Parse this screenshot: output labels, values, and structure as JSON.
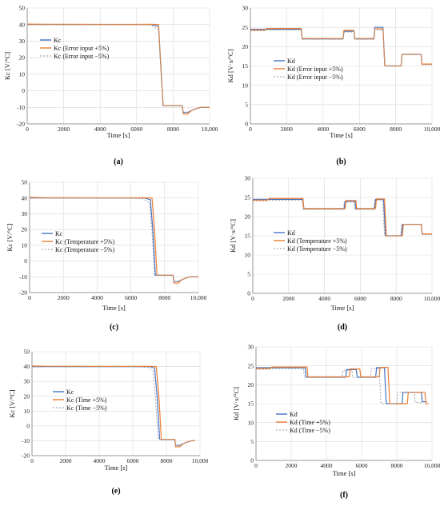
{
  "chart_data": [
    {
      "id": "a",
      "type": "line",
      "caption": "(a)",
      "xlabel": "Time [s]",
      "ylabel": "Kc [V/°C]",
      "xlim": [
        0,
        10000
      ],
      "ylim": [
        -20,
        50
      ],
      "xticks": [
        "0",
        "2000",
        "4000",
        "6000",
        "8000",
        "10,000"
      ],
      "xtick_values": [
        0,
        2000,
        4000,
        6000,
        8000,
        10000
      ],
      "yticks": [
        "-20",
        "-10",
        "0",
        "10",
        "20",
        "30",
        "40",
        "50"
      ],
      "ytick_values": [
        -20,
        -10,
        0,
        10,
        20,
        30,
        40,
        50
      ],
      "grid": true,
      "legend_position": "center",
      "series": [
        {
          "name": "Kc",
          "color": "#4472C4",
          "dash": "solid",
          "x": [
            0,
            1000,
            2000,
            4000,
            6000,
            6800,
            7200,
            7300,
            7450,
            7600,
            8500,
            8550,
            8800,
            9000,
            9200,
            9500,
            9700,
            10000
          ],
          "y": [
            40,
            40,
            40,
            40,
            40,
            40,
            39,
            20,
            -9,
            -9,
            -9,
            -13,
            -13,
            -12,
            -11,
            -10,
            -10,
            -10
          ]
        },
        {
          "name": "Kc (Error input +5%)",
          "color": "#ED7D31",
          "dash": "solid",
          "x": [
            0,
            1000,
            2000,
            4000,
            6000,
            6800,
            7200,
            7300,
            7450,
            7600,
            8500,
            8550,
            8800,
            9000,
            9200,
            9500,
            9700,
            10000
          ],
          "y": [
            40.3,
            40.2,
            40.2,
            40.1,
            40.1,
            40.2,
            40,
            20,
            -9,
            -9,
            -9,
            -14,
            -14,
            -12,
            -11,
            -10,
            -10,
            -10
          ]
        },
        {
          "name": "Kc (Error input −5%)",
          "color": "#999999",
          "dash": "2,2",
          "x": [
            0,
            1000,
            2000,
            4000,
            6000,
            6800,
            7200,
            7300,
            7450,
            7600,
            8500,
            8550,
            8800,
            9000,
            9200,
            9500,
            9700,
            10000
          ],
          "y": [
            39.8,
            39.9,
            39.8,
            39.9,
            39.9,
            39.7,
            37,
            19,
            -9,
            -9,
            -9,
            -13,
            -13,
            -12,
            -11,
            -10,
            -10,
            -10
          ]
        }
      ]
    },
    {
      "id": "b",
      "type": "line",
      "caption": "(b)",
      "xlabel": "Time [s]",
      "ylabel": "Kd [V·s/°C]",
      "xlim": [
        0,
        10000
      ],
      "ylim": [
        0,
        30
      ],
      "xticks": [
        "0",
        "2000",
        "4000",
        "6000",
        "8000",
        "10,000"
      ],
      "xtick_values": [
        0,
        2000,
        4000,
        6000,
        8000,
        10000
      ],
      "yticks": [
        "0",
        "5",
        "10",
        "15",
        "20",
        "25",
        "30"
      ],
      "ytick_values": [
        0,
        5,
        10,
        15,
        20,
        25,
        30
      ],
      "grid": true,
      "legend_position": "center",
      "series": [
        {
          "name": "Kd",
          "color": "#4472C4",
          "dash": "solid",
          "x": [
            0,
            800,
            900,
            2800,
            2850,
            5100,
            5150,
            5700,
            5750,
            6800,
            6850,
            7300,
            7400,
            8300,
            8350,
            9400,
            9450,
            10000
          ],
          "y": [
            24.5,
            24.5,
            24.5,
            24.5,
            22,
            22,
            24,
            24,
            22,
            22,
            25,
            25,
            15,
            15,
            18,
            18,
            15.5,
            15.5
          ]
        },
        {
          "name": "Kd (Error input +5%)",
          "color": "#ED7D31",
          "dash": "solid",
          "x": [
            0,
            800,
            900,
            2800,
            2850,
            5100,
            5150,
            5700,
            5750,
            6800,
            6850,
            7300,
            7400,
            8300,
            8350,
            9400,
            9450,
            10000
          ],
          "y": [
            24.3,
            24.3,
            24.7,
            24.7,
            22.1,
            22.1,
            24.2,
            24.2,
            22.1,
            22.1,
            24.6,
            24.6,
            15,
            15,
            18,
            18,
            15.5,
            15.5
          ]
        },
        {
          "name": "Kd (Error input −5%)",
          "color": "#999999",
          "dash": "2,2",
          "x": [
            0,
            800,
            900,
            2800,
            2850,
            5100,
            5150,
            5700,
            5750,
            6800,
            6850,
            7300,
            7400,
            8300,
            8350,
            9400,
            9450,
            10000
          ],
          "y": [
            24.1,
            24.1,
            24.3,
            24.3,
            21.9,
            21.9,
            23.8,
            23.8,
            21.9,
            21.9,
            24.3,
            24.3,
            15,
            15,
            18,
            18,
            15.3,
            15.3
          ]
        }
      ]
    },
    {
      "id": "c",
      "type": "line",
      "caption": "(c)",
      "xlabel": "Time [s]",
      "ylabel": "Kc [V/°C]",
      "xlim": [
        0,
        10000
      ],
      "ylim": [
        -20,
        50
      ],
      "xticks": [
        "0",
        "2000",
        "4000",
        "6000",
        "8000",
        "10,000"
      ],
      "xtick_values": [
        0,
        2000,
        4000,
        6000,
        8000,
        10000
      ],
      "yticks": [
        "-20",
        "-10",
        "0",
        "10",
        "20",
        "30",
        "40",
        "50"
      ],
      "ytick_values": [
        -20,
        -10,
        0,
        10,
        20,
        30,
        40,
        50
      ],
      "grid": true,
      "legend_position": "center",
      "series": [
        {
          "name": "Kc",
          "color": "#4472C4",
          "dash": "solid",
          "x": [
            0,
            1000,
            2000,
            4000,
            6000,
            6800,
            7150,
            7300,
            7450,
            7600,
            8500,
            8550,
            8800,
            9000,
            9200,
            9500,
            9700,
            10000
          ],
          "y": [
            40,
            40,
            40,
            40,
            40,
            40,
            39,
            20,
            -9,
            -9,
            -9,
            -13,
            -13,
            -12,
            -11,
            -10,
            -10,
            -10
          ]
        },
        {
          "name": "Kc (Temperature +5%)",
          "color": "#ED7D31",
          "dash": "solid",
          "x": [
            0,
            1000,
            2000,
            4000,
            6000,
            6800,
            7250,
            7400,
            7550,
            7700,
            8500,
            8550,
            8800,
            9000,
            9200,
            9500,
            9700,
            10000
          ],
          "y": [
            40.4,
            40.2,
            40.2,
            40.1,
            40.1,
            40.2,
            40,
            20,
            -9,
            -9,
            -9,
            -14,
            -14,
            -12,
            -11,
            -10,
            -10,
            -10
          ]
        },
        {
          "name": "Kc (Temperature −5%)",
          "color": "#999999",
          "dash": "2,2",
          "x": [
            0,
            1000,
            2000,
            4000,
            6000,
            6700,
            7100,
            7250,
            7400,
            7550,
            8500,
            8550,
            8800,
            9000,
            9200,
            9500,
            9700,
            10000
          ],
          "y": [
            39.8,
            39.9,
            39.8,
            39.9,
            39.9,
            39.5,
            37,
            19,
            -9,
            -9,
            -9,
            -13,
            -13,
            -12,
            -11,
            -10,
            -10,
            -10
          ]
        }
      ]
    },
    {
      "id": "d",
      "type": "line",
      "caption": "(d)",
      "xlabel": "Time [s]",
      "ylabel": "Kd [V·s/°C]",
      "xlim": [
        0,
        10000
      ],
      "ylim": [
        0,
        30
      ],
      "xticks": [
        "0",
        "2000",
        "4000",
        "6000",
        "8000",
        "10,000"
      ],
      "xtick_values": [
        0,
        2000,
        4000,
        6000,
        8000,
        10000
      ],
      "yticks": [
        "0",
        "5",
        "10",
        "15",
        "20",
        "25",
        "30"
      ],
      "ytick_values": [
        0,
        5,
        10,
        15,
        20,
        25,
        30
      ],
      "grid": true,
      "legend_position": "center",
      "series": [
        {
          "name": "Kd",
          "color": "#4472C4",
          "dash": "solid",
          "x": [
            0,
            800,
            900,
            2800,
            2850,
            5100,
            5150,
            5700,
            5750,
            6800,
            6850,
            7300,
            7400,
            8300,
            8350,
            9400,
            9450,
            10000
          ],
          "y": [
            24.5,
            24.5,
            24.5,
            24.5,
            22,
            22,
            24,
            24,
            22,
            22,
            24.5,
            24.5,
            15,
            15,
            18,
            18,
            15.5,
            15.5
          ]
        },
        {
          "name": "Kd (Temperature +5%)",
          "color": "#ED7D31",
          "dash": "solid",
          "x": [
            0,
            800,
            900,
            2800,
            2850,
            5150,
            5200,
            5750,
            5800,
            6850,
            6900,
            7350,
            7450,
            8350,
            8400,
            9400,
            9450,
            10000
          ],
          "y": [
            24.3,
            24.3,
            24.7,
            24.7,
            22.1,
            22.1,
            24.2,
            24.2,
            22.1,
            22.1,
            24.6,
            24.6,
            15,
            15,
            18,
            18,
            15.5,
            15.5
          ]
        },
        {
          "name": "Kd (Temperature −5%)",
          "color": "#999999",
          "dash": "2,2",
          "x": [
            0,
            800,
            900,
            2750,
            2800,
            5050,
            5100,
            5650,
            5700,
            6750,
            6800,
            7250,
            7350,
            8250,
            8300,
            9400,
            9450,
            10000
          ],
          "y": [
            24.1,
            24.1,
            24.3,
            24.3,
            21.9,
            21.9,
            23.8,
            23.8,
            21.9,
            21.9,
            24.3,
            24.3,
            15,
            15,
            18,
            18,
            15.3,
            15.3
          ]
        }
      ]
    },
    {
      "id": "e",
      "type": "line",
      "caption": "(e)",
      "xlabel": "Time [s]",
      "ylabel": "Kc [V/°C]",
      "xlim": [
        0,
        10000
      ],
      "ylim": [
        -20,
        50
      ],
      "xticks": [
        "0",
        "2000",
        "4000",
        "6000",
        "8000",
        "10,000"
      ],
      "xtick_values": [
        0,
        2000,
        4000,
        6000,
        8000,
        10000
      ],
      "yticks": [
        "-20",
        "-10",
        "0",
        "10",
        "20",
        "30",
        "40",
        "50"
      ],
      "ytick_values": [
        -20,
        -10,
        0,
        10,
        20,
        30,
        40,
        50
      ],
      "grid": true,
      "legend_position": "bottom-center",
      "series": [
        {
          "name": "Kc",
          "color": "#4472C4",
          "dash": "solid",
          "x": [
            0,
            1000,
            2000,
            4000,
            6000,
            7000,
            7300,
            7450,
            7600,
            8500,
            8550,
            8800,
            9000,
            9200,
            9500,
            9700
          ],
          "y": [
            40,
            40,
            40,
            40,
            40,
            40,
            39,
            20,
            -9,
            -9,
            -13,
            -13,
            -12,
            -11,
            -10,
            -10
          ]
        },
        {
          "name": "Kc (Time +5%)",
          "color": "#ED7D31",
          "dash": "solid",
          "x": [
            0,
            1000,
            2000,
            4000,
            6000,
            7100,
            7400,
            7550,
            7700,
            8500,
            8550,
            8800,
            9000,
            9200,
            9500,
            9700
          ],
          "y": [
            40.4,
            40.2,
            40.2,
            40.1,
            40.1,
            40.2,
            40,
            20,
            -9,
            -9,
            -14,
            -14,
            -12,
            -11,
            -10,
            -10
          ]
        },
        {
          "name": "Kc (Time  −5%)",
          "color": "#999999",
          "dash": "2,2",
          "x": [
            0,
            1000,
            2000,
            4000,
            6000,
            6900,
            7200,
            7350,
            7500,
            8500,
            8550,
            8800,
            9000,
            9200,
            9500,
            9700
          ],
          "y": [
            39.8,
            39.9,
            39.8,
            39.9,
            39.9,
            39.5,
            37,
            19,
            -9,
            -9,
            -13,
            -13,
            -12,
            -11,
            -10,
            -10
          ]
        }
      ]
    },
    {
      "id": "f",
      "type": "line",
      "caption": "(f)",
      "xlabel": "Time [s]",
      "ylabel": "Kd [V·s/°C]",
      "xlim": [
        0,
        10000
      ],
      "ylim": [
        0,
        30
      ],
      "xticks": [
        "0",
        "2000",
        "4000",
        "6000",
        "8000",
        "10,000"
      ],
      "xtick_values": [
        0,
        2000,
        4000,
        6000,
        8000,
        10000
      ],
      "yticks": [
        "0",
        "5",
        "10",
        "15",
        "20",
        "25",
        "30"
      ],
      "ytick_values": [
        0,
        5,
        10,
        15,
        20,
        25,
        30
      ],
      "grid": true,
      "legend_position": "bottom-center",
      "series": [
        {
          "name": "Kd",
          "color": "#4472C4",
          "dash": "solid",
          "x": [
            0,
            800,
            900,
            2800,
            2850,
            5100,
            5150,
            5700,
            5750,
            6800,
            6850,
            7300,
            7400,
            8300,
            8350,
            9400,
            9450,
            9700
          ],
          "y": [
            24.5,
            24.5,
            24.5,
            24.5,
            22,
            22,
            24,
            24,
            22,
            22,
            24.5,
            24.5,
            15,
            15,
            18,
            18,
            15.5,
            15.5
          ]
        },
        {
          "name": "Kd (Time +5%)",
          "color": "#ED7D31",
          "dash": "solid",
          "x": [
            0,
            800,
            900,
            2900,
            2950,
            5300,
            5350,
            5900,
            5950,
            7000,
            7050,
            7500,
            7600,
            8600,
            8650,
            9600,
            9650,
            9800
          ],
          "y": [
            24.3,
            24.3,
            24.7,
            24.7,
            22.1,
            22.1,
            24.2,
            24.2,
            22.1,
            22.1,
            24.6,
            24.6,
            15,
            15,
            18,
            18,
            15,
            15
          ]
        },
        {
          "name": "Kd (Time −5%)",
          "color": "#999999",
          "dash": "2,2",
          "x": [
            0,
            800,
            900,
            2700,
            2750,
            4900,
            4950,
            5450,
            5500,
            6500,
            6550,
            7000,
            7100,
            8000,
            8050,
            9000,
            9050,
            9500
          ],
          "y": [
            24.1,
            24.1,
            24.3,
            24.3,
            21.9,
            21.9,
            23.8,
            23.8,
            21.9,
            21.9,
            24.3,
            24.3,
            15,
            15,
            18,
            18,
            15.3,
            15.3
          ]
        }
      ]
    }
  ]
}
